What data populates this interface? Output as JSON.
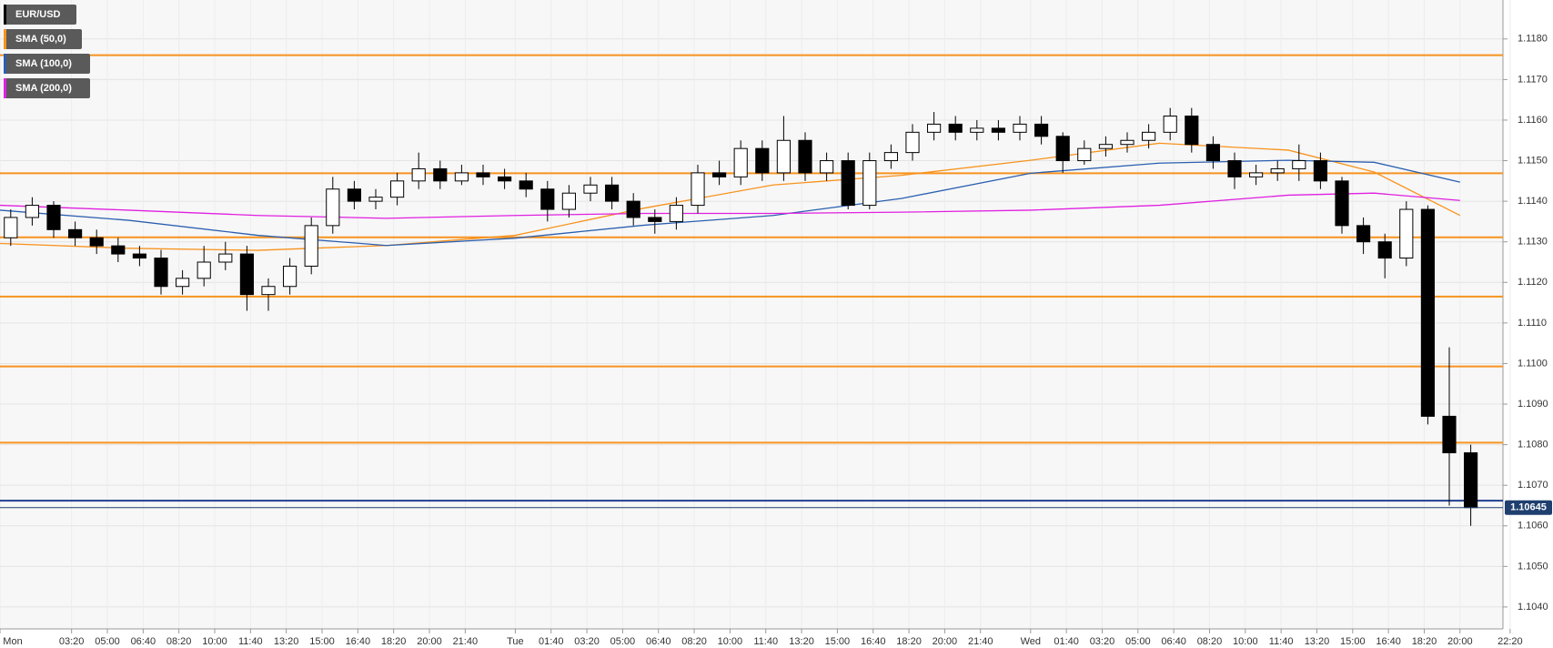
{
  "chart_data": {
    "type": "candlestick",
    "name": "EUR/USD",
    "x": [
      0,
      60,
      120,
      180,
      240,
      300,
      360,
      420,
      480,
      540,
      600,
      660,
      720,
      780,
      840,
      900,
      960,
      1020,
      1080,
      1140,
      1200,
      1260,
      1320,
      1380,
      1440,
      1500,
      1560,
      1620,
      1680,
      1740,
      1800,
      1860,
      1920,
      1980,
      2040,
      2100,
      2160,
      2220,
      2280,
      2340,
      2400,
      2460,
      2520,
      2580,
      2640,
      2700,
      2760,
      2820,
      2880,
      2940,
      3000,
      3060,
      3120,
      3180,
      3240,
      3300,
      3360,
      3420,
      3480,
      3540,
      3600,
      3660,
      3720,
      3780,
      3840,
      3900,
      3960,
      4020,
      4080
    ],
    "open": [
      1.1131,
      1.1136,
      1.1139,
      1.1133,
      1.1131,
      1.1129,
      1.1127,
      1.1126,
      1.1119,
      1.1121,
      1.1125,
      1.1127,
      1.1117,
      1.1119,
      1.1124,
      1.1134,
      1.1143,
      1.114,
      1.1141,
      1.1145,
      1.1148,
      1.1145,
      1.1147,
      1.1146,
      1.1145,
      1.1143,
      1.1138,
      1.1142,
      1.1144,
      1.114,
      1.1136,
      1.1135,
      1.1139,
      1.1147,
      1.1146,
      1.1153,
      1.1147,
      1.1155,
      1.1147,
      1.115,
      1.1139,
      1.115,
      1.1152,
      1.1157,
      1.1159,
      1.1157,
      1.1158,
      1.1157,
      1.1159,
      1.1156,
      1.115,
      1.1153,
      1.1154,
      1.1155,
      1.1157,
      1.1161,
      1.1154,
      1.115,
      1.1146,
      1.1147,
      1.1148,
      1.115,
      1.1145,
      1.1134,
      1.113,
      1.1126,
      1.1138,
      1.1087,
      1.1078
    ],
    "high": [
      1.1138,
      1.1141,
      1.114,
      1.1135,
      1.1133,
      1.1131,
      1.1129,
      1.1128,
      1.1123,
      1.1129,
      1.113,
      1.1129,
      1.1121,
      1.1126,
      1.1136,
      1.1146,
      1.1145,
      1.1143,
      1.1147,
      1.1152,
      1.115,
      1.1149,
      1.1149,
      1.1148,
      1.1147,
      1.1145,
      1.1144,
      1.1146,
      1.1146,
      1.1142,
      1.1138,
      1.1141,
      1.1149,
      1.115,
      1.1155,
      1.1155,
      1.1161,
      1.1157,
      1.1152,
      1.1152,
      1.1152,
      1.1154,
      1.1159,
      1.1162,
      1.1161,
      1.116,
      1.116,
      1.1161,
      1.1161,
      1.1157,
      1.1155,
      1.1156,
      1.1157,
      1.1159,
      1.1163,
      1.1163,
      1.1156,
      1.1152,
      1.1149,
      1.115,
      1.1154,
      1.1152,
      1.1146,
      1.1136,
      1.1132,
      1.114,
      1.1139,
      1.1104,
      1.108
    ],
    "low": [
      1.1129,
      1.1134,
      1.1131,
      1.1129,
      1.1127,
      1.1125,
      1.1124,
      1.1117,
      1.1117,
      1.1119,
      1.1123,
      1.1113,
      1.1113,
      1.1117,
      1.1122,
      1.1132,
      1.1138,
      1.1138,
      1.1139,
      1.1143,
      1.1143,
      1.1144,
      1.1144,
      1.1143,
      1.1141,
      1.1135,
      1.1136,
      1.114,
      1.1138,
      1.1134,
      1.1132,
      1.1133,
      1.1137,
      1.1144,
      1.1144,
      1.1145,
      1.1145,
      1.1145,
      1.1145,
      1.1138,
      1.1138,
      1.1148,
      1.115,
      1.1155,
      1.1155,
      1.1155,
      1.1155,
      1.1155,
      1.1154,
      1.1147,
      1.1149,
      1.1151,
      1.1152,
      1.1153,
      1.1155,
      1.1152,
      1.1148,
      1.1143,
      1.1144,
      1.1145,
      1.1145,
      1.1143,
      1.1132,
      1.1127,
      1.1121,
      1.1124,
      1.1085,
      1.1065,
      1.106
    ],
    "close": [
      1.1136,
      1.1139,
      1.1133,
      1.1131,
      1.1129,
      1.1127,
      1.1126,
      1.1119,
      1.1121,
      1.1125,
      1.1127,
      1.1117,
      1.1119,
      1.1124,
      1.1134,
      1.1143,
      1.114,
      1.1141,
      1.1145,
      1.1148,
      1.1145,
      1.1147,
      1.1146,
      1.1145,
      1.1143,
      1.1138,
      1.1142,
      1.1144,
      1.114,
      1.1136,
      1.1135,
      1.1139,
      1.1147,
      1.1146,
      1.1153,
      1.1147,
      1.1155,
      1.1147,
      1.115,
      1.1139,
      1.115,
      1.1152,
      1.1157,
      1.1159,
      1.1157,
      1.1158,
      1.1157,
      1.1159,
      1.1156,
      1.115,
      1.1153,
      1.1154,
      1.1155,
      1.1157,
      1.1161,
      1.1154,
      1.115,
      1.1146,
      1.1147,
      1.1148,
      1.115,
      1.1145,
      1.1134,
      1.113,
      1.1126,
      1.1138,
      1.1087,
      1.1078,
      1.10645
    ],
    "up_color": "#ffffff",
    "down_color": "#000000",
    "series": [
      {
        "name": "SMA (50,0)",
        "color": "#f7931e",
        "x": [
          0,
          360,
          720,
          1080,
          1440,
          1800,
          2160,
          2520,
          2880,
          3240,
          3600,
          3840,
          4080
        ],
        "values": [
          1.11296,
          1.11284,
          1.11279,
          1.11291,
          1.11316,
          1.11383,
          1.1144,
          1.11464,
          1.11501,
          1.11543,
          1.11526,
          1.11472,
          1.11365
        ]
      },
      {
        "name": "SMA (100,0)",
        "color": "#2b5fb0",
        "x": [
          0,
          360,
          720,
          1080,
          1440,
          1800,
          2160,
          2520,
          2880,
          3240,
          3600,
          3840,
          4080
        ],
        "values": [
          1.11378,
          1.11353,
          1.11316,
          1.11291,
          1.11309,
          1.11341,
          1.11365,
          1.11407,
          1.11469,
          1.11494,
          1.11501,
          1.11496,
          1.11447
        ]
      },
      {
        "name": "SMA (200,0)",
        "color": "#e020e0",
        "x": [
          0,
          360,
          720,
          1080,
          1440,
          1800,
          2160,
          2520,
          2880,
          3240,
          3600,
          3840,
          4080
        ],
        "values": [
          1.1139,
          1.11378,
          1.11365,
          1.11358,
          1.11365,
          1.1137,
          1.1137,
          1.11373,
          1.11378,
          1.1139,
          1.11415,
          1.1142,
          1.11402
        ]
      }
    ],
    "levels": [
      {
        "color": "#f7931e",
        "value": 1.1176
      },
      {
        "color": "#f7931e",
        "value": 1.11469
      },
      {
        "color": "#f7931e",
        "value": 1.11311
      },
      {
        "color": "#f7931e",
        "value": 1.11165
      },
      {
        "color": "#f7931e",
        "value": 1.10993
      },
      {
        "color": "#f7931e",
        "value": 1.10805
      },
      {
        "color": "#1f3f8f",
        "value": 1.10662
      }
    ],
    "last_price": 1.10645,
    "last_price_color": "#1f3f6f",
    "xlim": [
      0,
      4200
    ],
    "ylim": [
      1.10346,
      1.11896
    ],
    "xticks": [
      {
        "value": 0,
        "label": "Mon"
      },
      {
        "value": 200,
        "label": "03:20"
      },
      {
        "value": 300,
        "label": "05:00"
      },
      {
        "value": 400,
        "label": "06:40"
      },
      {
        "value": 500,
        "label": "08:20"
      },
      {
        "value": 600,
        "label": "10:00"
      },
      {
        "value": 700,
        "label": "11:40"
      },
      {
        "value": 800,
        "label": "13:20"
      },
      {
        "value": 900,
        "label": "15:00"
      },
      {
        "value": 1000,
        "label": "16:40"
      },
      {
        "value": 1100,
        "label": "18:20"
      },
      {
        "value": 1200,
        "label": "20:00"
      },
      {
        "value": 1300,
        "label": "21:40"
      },
      {
        "value": 1440,
        "label": "Tue"
      },
      {
        "value": 1540,
        "label": "01:40"
      },
      {
        "value": 1640,
        "label": "03:20"
      },
      {
        "value": 1740,
        "label": "05:00"
      },
      {
        "value": 1840,
        "label": "06:40"
      },
      {
        "value": 1940,
        "label": "08:20"
      },
      {
        "value": 2040,
        "label": "10:00"
      },
      {
        "value": 2140,
        "label": "11:40"
      },
      {
        "value": 2240,
        "label": "13:20"
      },
      {
        "value": 2340,
        "label": "15:00"
      },
      {
        "value": 2440,
        "label": "16:40"
      },
      {
        "value": 2540,
        "label": "18:20"
      },
      {
        "value": 2640,
        "label": "20:00"
      },
      {
        "value": 2740,
        "label": "21:40"
      },
      {
        "value": 2880,
        "label": "Wed"
      },
      {
        "value": 2980,
        "label": "01:40"
      },
      {
        "value": 3080,
        "label": "03:20"
      },
      {
        "value": 3180,
        "label": "05:00"
      },
      {
        "value": 3280,
        "label": "06:40"
      },
      {
        "value": 3380,
        "label": "08:20"
      },
      {
        "value": 3480,
        "label": "10:00"
      },
      {
        "value": 3580,
        "label": "11:40"
      },
      {
        "value": 3680,
        "label": "13:20"
      },
      {
        "value": 3780,
        "label": "15:00"
      },
      {
        "value": 3880,
        "label": "16:40"
      },
      {
        "value": 3980,
        "label": "18:20"
      },
      {
        "value": 4080,
        "label": "20:00"
      },
      {
        "value": 4220,
        "label": "22:20"
      }
    ],
    "yticks": [
      {
        "value": 1.104,
        "label": "1.1040"
      },
      {
        "value": 1.105,
        "label": "1.1050"
      },
      {
        "value": 1.106,
        "label": "1.1060"
      },
      {
        "value": 1.107,
        "label": "1.1070"
      },
      {
        "value": 1.108,
        "label": "1.1080"
      },
      {
        "value": 1.109,
        "label": "1.1090"
      },
      {
        "value": 1.11,
        "label": "1.1100"
      },
      {
        "value": 1.111,
        "label": "1.1110"
      },
      {
        "value": 1.112,
        "label": "1.1120"
      },
      {
        "value": 1.113,
        "label": "1.1130"
      },
      {
        "value": 1.114,
        "label": "1.1140"
      },
      {
        "value": 1.115,
        "label": "1.1150"
      },
      {
        "value": 1.116,
        "label": "1.1160"
      },
      {
        "value": 1.117,
        "label": "1.1170"
      },
      {
        "value": 1.118,
        "label": "1.1180"
      }
    ],
    "grid": true
  }
}
